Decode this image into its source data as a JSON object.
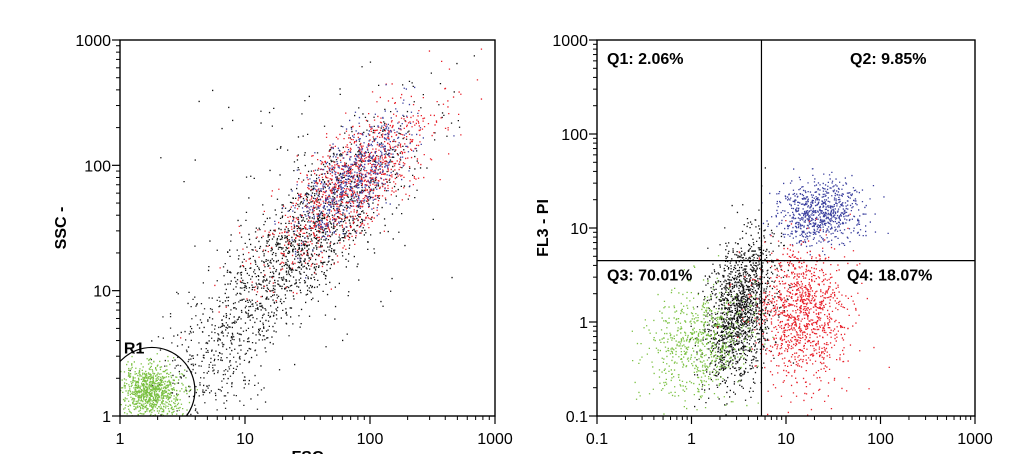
{
  "chart_data": [
    {
      "type": "scatter",
      "xscale": "log",
      "yscale": "log",
      "xlim": [
        1,
        1000
      ],
      "ylim": [
        1,
        1000
      ],
      "xticks": [
        {
          "value": 1,
          "label": "1"
        },
        {
          "value": 10,
          "label": "10"
        },
        {
          "value": 100,
          "label": "100"
        },
        {
          "value": 1000,
          "label": "1000"
        }
      ],
      "yticks": [
        {
          "value": 1,
          "label": "1"
        },
        {
          "value": 10,
          "label": "10"
        },
        {
          "value": 100,
          "label": "100"
        },
        {
          "value": 1000,
          "label": "1000"
        }
      ],
      "xlabel": "FSC",
      "ylabel": "SSC -",
      "gate": {
        "label": "R1",
        "center": [
          1.8,
          1.6
        ],
        "color": "#7bc142"
      },
      "populations": [
        {
          "color": "#111111",
          "count": 1500,
          "center": [
            30,
            25
          ],
          "spread": [
            0.42,
            0.48
          ],
          "corr": 0.82
        },
        {
          "color": "#e8202a",
          "count": 1100,
          "center": [
            70,
            70
          ],
          "spread": [
            0.33,
            0.33
          ],
          "corr": 0.75
        },
        {
          "color": "#3a3f9e",
          "count": 650,
          "center": [
            70,
            80
          ],
          "spread": [
            0.22,
            0.24
          ],
          "corr": 0.65
        },
        {
          "color": "#222222",
          "count": 300,
          "center": [
            6,
            3
          ],
          "spread": [
            0.25,
            0.3
          ],
          "corr": 0.4
        },
        {
          "color": "#111111",
          "count": 90,
          "center": [
            20,
            60
          ],
          "spread": [
            0.6,
            0.6
          ],
          "corr": 0.0
        },
        {
          "color": "#7bc142",
          "count": 900,
          "center": [
            1.75,
            1.6
          ],
          "spread": [
            0.12,
            0.1
          ],
          "corr": 0.0
        }
      ]
    },
    {
      "type": "scatter",
      "xscale": "log",
      "yscale": "log",
      "xlim": [
        0.1,
        1000
      ],
      "ylim": [
        0.1,
        1000
      ],
      "xticks": [
        {
          "value": 0.1,
          "label": "0.1"
        },
        {
          "value": 1,
          "label": "1"
        },
        {
          "value": 10,
          "label": "10"
        },
        {
          "value": 100,
          "label": "100"
        },
        {
          "value": 1000,
          "label": "1000"
        }
      ],
      "yticks": [
        {
          "value": 0.1,
          "label": "0.1"
        },
        {
          "value": 1,
          "label": "1"
        },
        {
          "value": 10,
          "label": "10"
        },
        {
          "value": 100,
          "label": "100"
        },
        {
          "value": 1000,
          "label": "1000"
        }
      ],
      "ylabel": "FL3 - PI",
      "quadrant_divider": {
        "x": 5.5,
        "y": 4.5
      },
      "quadrants": [
        {
          "label": "Q1: 2.06%",
          "pos": "top-left"
        },
        {
          "label": "Q2: 9.85%",
          "pos": "top-right"
        },
        {
          "label": "Q3: 70.01%",
          "pos": "bottom-left"
        },
        {
          "label": "Q4: 18.07%",
          "pos": "bottom-right"
        }
      ],
      "populations": [
        {
          "color": "#111111",
          "count": 1500,
          "center": [
            3.2,
            1.3
          ],
          "spread": [
            0.18,
            0.4
          ],
          "corr": 0.35
        },
        {
          "color": "#7bc142",
          "count": 700,
          "center": [
            1.2,
            0.6
          ],
          "spread": [
            0.28,
            0.28
          ],
          "corr": 0.2
        },
        {
          "color": "#3a3f9e",
          "count": 750,
          "center": [
            22,
            15
          ],
          "spread": [
            0.22,
            0.16
          ],
          "corr": 0.1
        },
        {
          "color": "#e8202a",
          "count": 1100,
          "center": [
            14,
            1.2
          ],
          "spread": [
            0.25,
            0.36
          ],
          "corr": 0.0
        }
      ]
    }
  ]
}
